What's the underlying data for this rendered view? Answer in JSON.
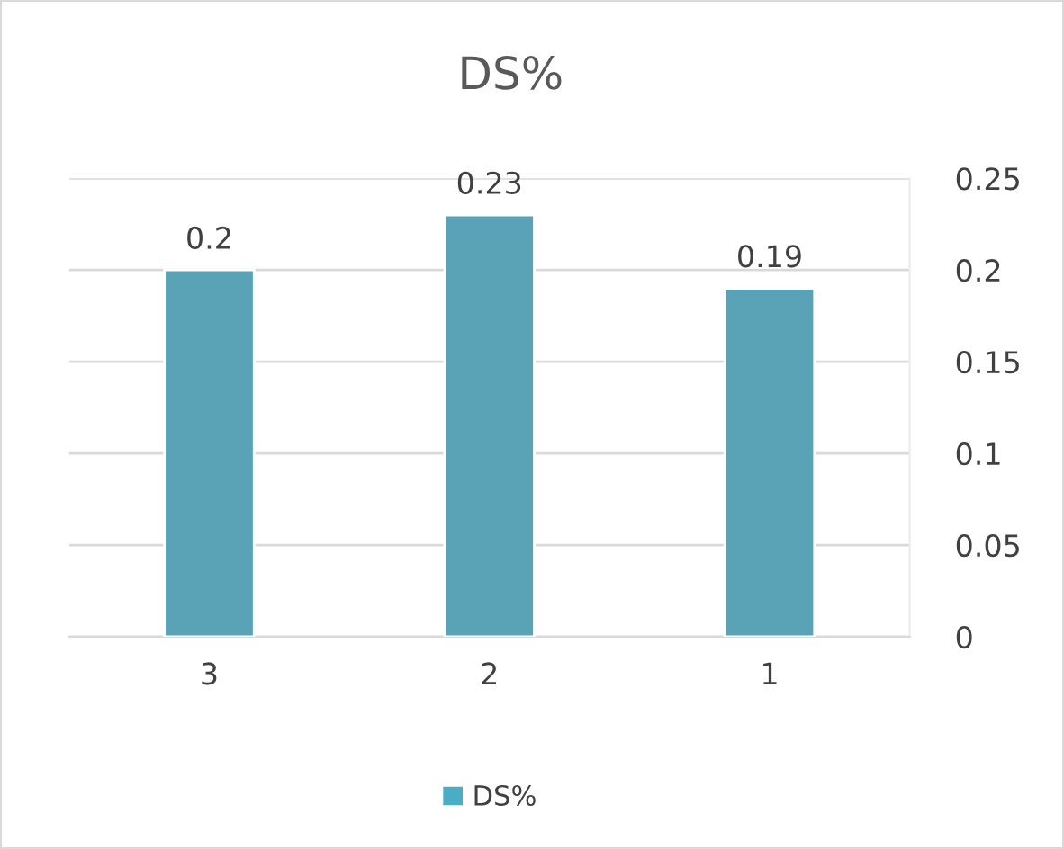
{
  "chart_data": {
    "type": "bar",
    "title": "DS%",
    "categories": [
      "3",
      "2",
      "1"
    ],
    "series": [
      {
        "name": "DS%",
        "color": "#4bacc6",
        "values": [
          0.2,
          0.23,
          0.19
        ]
      }
    ],
    "ylim": [
      0,
      0.25
    ],
    "yticks": [
      0,
      0.05,
      0.1,
      0.15,
      0.2,
      0.25
    ],
    "grid": "y",
    "legend": "bottom",
    "data_labels": true
  }
}
